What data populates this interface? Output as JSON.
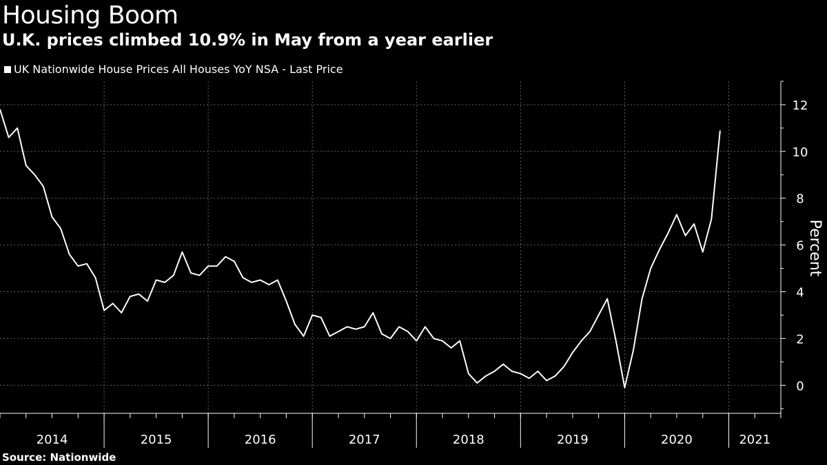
{
  "title": "Housing Boom",
  "subtitle": "U.K. prices climbed 10.9% in May from a year earlier",
  "source": "Source: Nationwide",
  "colors": {
    "background": "#000000",
    "line": "#ffffff",
    "grid": "#666666"
  },
  "chart_data": {
    "type": "line",
    "title": "Housing Boom",
    "subtitle": "U.K. prices climbed 10.9% in May from a year earlier",
    "legend_placement": "top-left",
    "series": [
      {
        "name": "UK Nationwide House Prices All Houses YoY NSA - Last Price",
        "start": "2014-01",
        "frequency": "monthly",
        "values": [
          11.8,
          10.6,
          11.0,
          9.4,
          9.0,
          8.5,
          7.2,
          6.7,
          5.6,
          5.1,
          5.2,
          4.6,
          3.2,
          3.5,
          3.1,
          3.8,
          3.9,
          3.6,
          4.5,
          4.4,
          4.7,
          5.7,
          4.8,
          4.7,
          5.1,
          5.1,
          5.5,
          5.3,
          4.6,
          4.4,
          4.5,
          4.3,
          4.5,
          3.6,
          2.6,
          2.1,
          3.0,
          2.9,
          2.1,
          2.3,
          2.5,
          2.4,
          2.5,
          3.1,
          2.2,
          2.0,
          2.5,
          2.3,
          1.9,
          2.5,
          2.0,
          1.9,
          1.6,
          1.9,
          0.5,
          0.1,
          0.4,
          0.6,
          0.9,
          0.6,
          0.5,
          0.3,
          0.6,
          0.2,
          0.4,
          0.8,
          1.4,
          1.9,
          2.3,
          3.0,
          3.7,
          1.9,
          -0.1,
          1.5,
          3.7,
          5.0,
          5.8,
          6.5,
          7.3,
          6.4,
          6.9,
          5.7,
          7.1,
          10.9
        ]
      }
    ],
    "x_ticks": [
      "2014",
      "2015",
      "2016",
      "2017",
      "2018",
      "2019",
      "2020",
      "2021"
    ],
    "xlim": [
      2014.0,
      2021.5
    ],
    "ylabel": "Percent",
    "ylim": [
      -1.2,
      13.0
    ],
    "y_ticks": [
      0,
      2,
      4,
      6,
      8,
      10,
      12
    ],
    "grid": true
  }
}
